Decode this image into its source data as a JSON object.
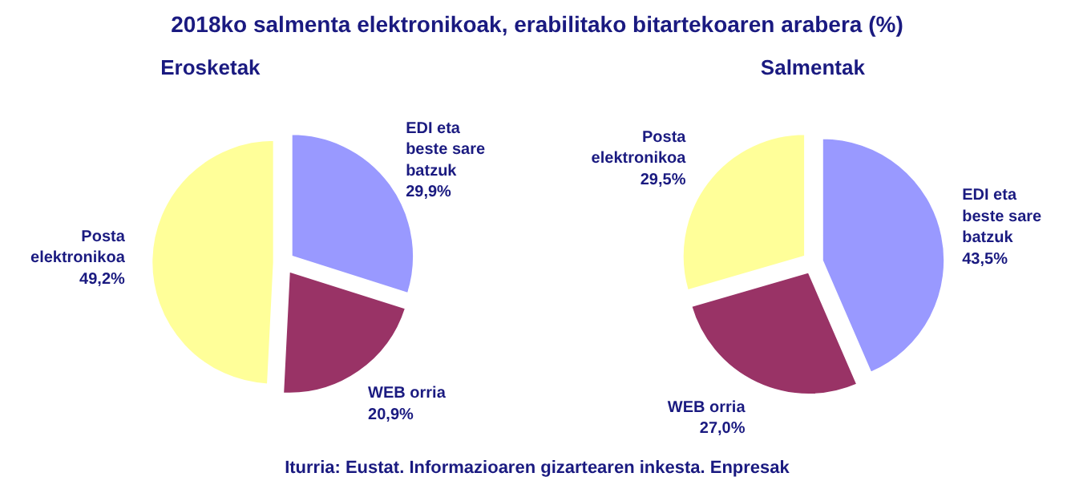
{
  "chart_data": [
    {
      "type": "pie",
      "title": "2018ko salmenta elektronikoak, erabilitako bitartekoaren arabera (%)",
      "subtitle": "Erosketak",
      "categories": [
        "EDI eta beste sare batzuk",
        "WEB orria",
        "Posta elektronikoa"
      ],
      "values": [
        29.9,
        20.9,
        49.2
      ],
      "value_labels": [
        "29,9%",
        "20,9%",
        "49,2%"
      ],
      "colors": [
        "#9999ff",
        "#993366",
        "#ffff99"
      ]
    },
    {
      "type": "pie",
      "subtitle": "Salmentak",
      "categories": [
        "EDI eta beste sare batzuk",
        "WEB orria",
        "Posta elektronikoa"
      ],
      "values": [
        43.5,
        27.0,
        29.5
      ],
      "value_labels": [
        "43,5%",
        "27,0%",
        "29,5%"
      ],
      "colors": [
        "#9999ff",
        "#993366",
        "#ffff99"
      ],
      "annotations": [
        "Iturria: Eustat. Informazioaren gizartearen inkesta. Enpresak"
      ]
    }
  ]
}
